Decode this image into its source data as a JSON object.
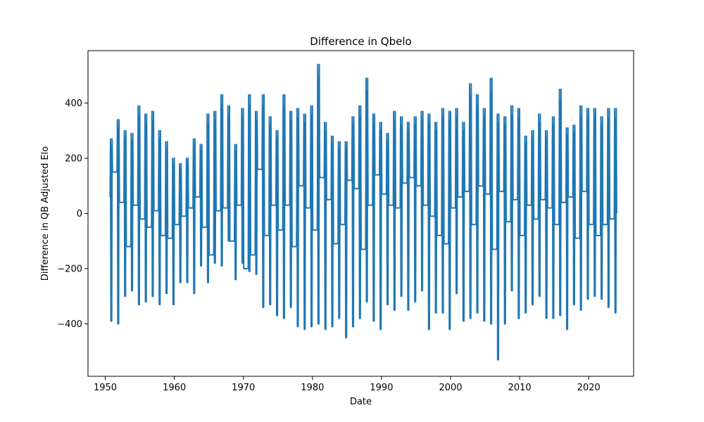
{
  "chart_data": {
    "type": "line",
    "title": "Difference in Qbelo",
    "xlabel": "Date",
    "ylabel": "Difference in QB Adjusted Elo",
    "xlim": [
      1947.5,
      2026.5
    ],
    "ylim": [
      -590,
      590
    ],
    "x_ticks": [
      "1950",
      "1960",
      "1970",
      "1980",
      "1990",
      "2000",
      "2010",
      "2020"
    ],
    "y_ticks": [
      "−400",
      "−200",
      "0",
      "200",
      "400"
    ],
    "x_tick_values": [
      1950,
      1960,
      1970,
      1980,
      1990,
      2000,
      2010,
      2020
    ],
    "y_tick_values": [
      -400,
      -200,
      0,
      200,
      400
    ],
    "series": [
      {
        "color": "#1f77b4",
        "season_start": 1950.7,
        "season_end": 1951.05,
        "season_min": [
          -390,
          -400,
          -300,
          -280,
          -330,
          -320,
          -300,
          -330,
          -290,
          -330,
          -250,
          -250,
          -290,
          -190,
          -250,
          -180,
          -190,
          -100,
          -240,
          -180,
          -210,
          -220,
          -340,
          -330,
          -370,
          -380,
          -340,
          -410,
          -420,
          -410,
          -400,
          -420,
          -410,
          -380,
          -450,
          -410,
          -380,
          -320,
          -390,
          -420,
          -330,
          -350,
          -300,
          -350,
          -320,
          -280,
          -420,
          -360,
          -360,
          -420,
          -290,
          -390,
          -380,
          -360,
          -390,
          -400,
          -530,
          -400,
          -280,
          -380,
          -360,
          -330,
          -300,
          -380,
          -380,
          -370,
          -420,
          -330,
          -350,
          -310,
          -300,
          -310,
          -340,
          -360
        ],
        "season_max": [
          270,
          340,
          300,
          290,
          390,
          360,
          370,
          300,
          260,
          200,
          180,
          200,
          270,
          250,
          360,
          370,
          430,
          390,
          250,
          380,
          430,
          370,
          430,
          350,
          300,
          430,
          370,
          380,
          360,
          390,
          540,
          330,
          280,
          260,
          260,
          350,
          390,
          490,
          360,
          330,
          290,
          370,
          350,
          330,
          350,
          370,
          360,
          330,
          380,
          370,
          380,
          330,
          470,
          430,
          380,
          490,
          360,
          350,
          390,
          380,
          280,
          300,
          360,
          300,
          350,
          450,
          310,
          320,
          390,
          380,
          380,
          350,
          380,
          380
        ],
        "offseason": [
          60,
          150,
          40,
          -120,
          30,
          -20,
          -50,
          10,
          -80,
          -90,
          -40,
          -10,
          20,
          60,
          -50,
          -150,
          10,
          20,
          -100,
          30,
          -200,
          -150,
          160,
          -80,
          30,
          -60,
          30,
          -120,
          100,
          20,
          -60,
          130,
          50,
          -110,
          -40,
          120,
          90,
          -130,
          30,
          140,
          70,
          30,
          20,
          110,
          130,
          100,
          30,
          -10,
          -80,
          -110,
          20,
          60,
          80,
          -40,
          100,
          70,
          -130,
          80,
          -30,
          50,
          -80,
          30,
          -20,
          50,
          20,
          -40,
          40,
          60,
          -90,
          80,
          -40,
          -80,
          -40,
          -20
        ]
      }
    ]
  }
}
